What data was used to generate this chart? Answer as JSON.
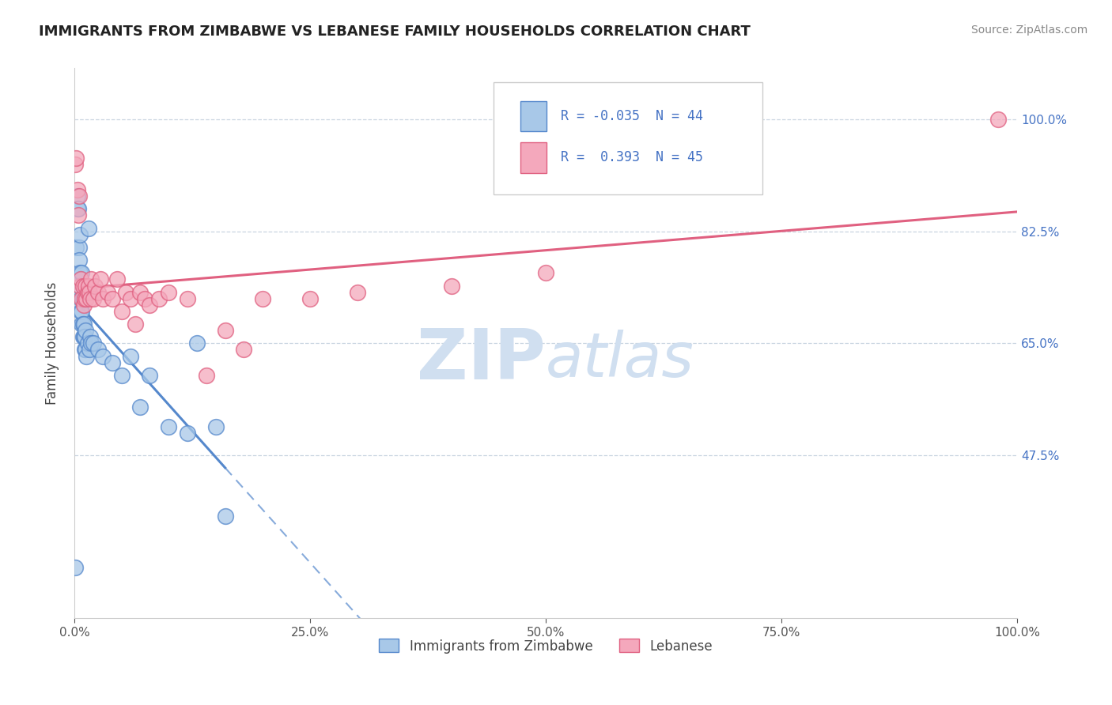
{
  "title": "IMMIGRANTS FROM ZIMBABWE VS LEBANESE FAMILY HOUSEHOLDS CORRELATION CHART",
  "source": "Source: ZipAtlas.com",
  "ylabel": "Family Households",
  "yticks": [
    "47.5%",
    "65.0%",
    "82.5%",
    "100.0%"
  ],
  "ytick_vals": [
    0.475,
    0.65,
    0.825,
    1.0
  ],
  "legend_r_zimbabwe": "-0.035",
  "legend_n_zimbabwe": "44",
  "legend_r_lebanese": "0.393",
  "legend_n_lebanese": "45",
  "color_zimbabwe": "#a8c8e8",
  "color_lebanese": "#f4a8bc",
  "color_line_zimbabwe": "#5588cc",
  "color_line_lebanese": "#e06080",
  "background_color": "#ffffff",
  "watermark_color": "#d0dff0",
  "zimbabwe_x": [
    0.001,
    0.002,
    0.003,
    0.003,
    0.004,
    0.005,
    0.005,
    0.006,
    0.006,
    0.006,
    0.007,
    0.007,
    0.007,
    0.008,
    0.008,
    0.008,
    0.009,
    0.009,
    0.009,
    0.01,
    0.01,
    0.011,
    0.011,
    0.012,
    0.012,
    0.013,
    0.014,
    0.015,
    0.016,
    0.017,
    0.018,
    0.02,
    0.025,
    0.03,
    0.04,
    0.05,
    0.06,
    0.07,
    0.08,
    0.1,
    0.12,
    0.13,
    0.15,
    0.16
  ],
  "zimbabwe_y": [
    0.3,
    0.8,
    0.88,
    0.86,
    0.86,
    0.8,
    0.78,
    0.76,
    0.74,
    0.82,
    0.72,
    0.7,
    0.75,
    0.68,
    0.7,
    0.76,
    0.66,
    0.68,
    0.72,
    0.66,
    0.68,
    0.64,
    0.66,
    0.64,
    0.67,
    0.63,
    0.65,
    0.83,
    0.64,
    0.66,
    0.65,
    0.65,
    0.64,
    0.63,
    0.62,
    0.6,
    0.63,
    0.55,
    0.6,
    0.52,
    0.51,
    0.65,
    0.52,
    0.38
  ],
  "lebanese_x": [
    0.001,
    0.002,
    0.003,
    0.004,
    0.005,
    0.006,
    0.007,
    0.008,
    0.009,
    0.01,
    0.011,
    0.012,
    0.013,
    0.014,
    0.015,
    0.016,
    0.017,
    0.018,
    0.02,
    0.022,
    0.025,
    0.028,
    0.03,
    0.035,
    0.04,
    0.045,
    0.05,
    0.055,
    0.06,
    0.065,
    0.07,
    0.075,
    0.08,
    0.09,
    0.1,
    0.12,
    0.14,
    0.16,
    0.18,
    0.2,
    0.25,
    0.3,
    0.4,
    0.5,
    0.98
  ],
  "lebanese_y": [
    0.93,
    0.94,
    0.89,
    0.85,
    0.88,
    0.74,
    0.75,
    0.72,
    0.74,
    0.71,
    0.72,
    0.74,
    0.72,
    0.73,
    0.74,
    0.73,
    0.72,
    0.75,
    0.72,
    0.74,
    0.73,
    0.75,
    0.72,
    0.73,
    0.72,
    0.75,
    0.7,
    0.73,
    0.72,
    0.68,
    0.73,
    0.72,
    0.71,
    0.72,
    0.73,
    0.72,
    0.6,
    0.67,
    0.64,
    0.72,
    0.72,
    0.73,
    0.74,
    0.76,
    1.0
  ],
  "xmin": 0.0,
  "xmax": 1.0,
  "ymin": 0.22,
  "ymax": 1.08
}
